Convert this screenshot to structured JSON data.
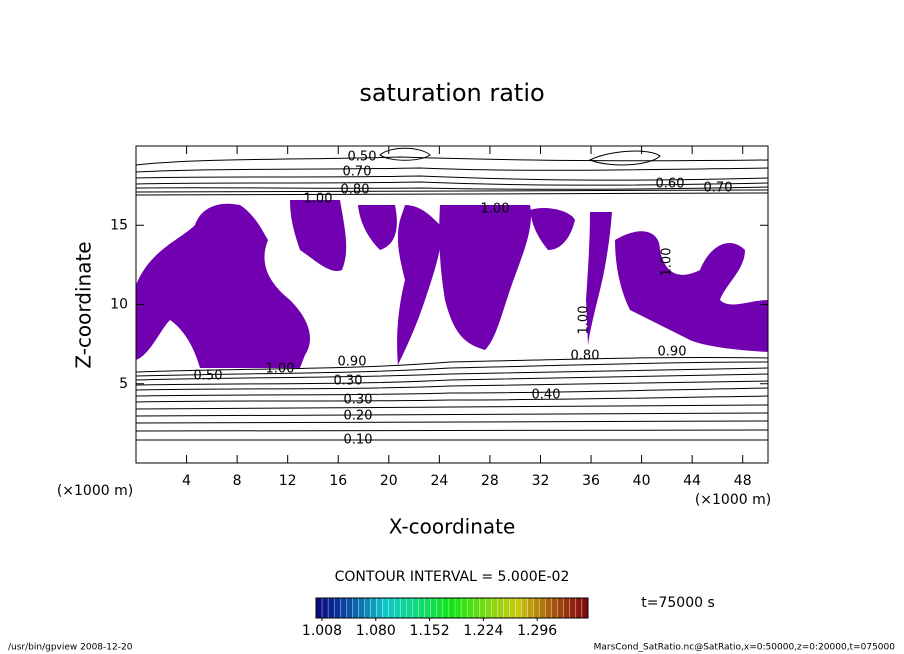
{
  "chart_data": {
    "type": "contour",
    "title": "saturation ratio",
    "xlabel": "X-coordinate",
    "ylabel": "Z-coordinate",
    "xunit": "(×1000 m)",
    "yunit": "(×1000 m)",
    "xlim": [
      0,
      50
    ],
    "ylim": [
      0,
      20
    ],
    "xticks": [
      4,
      8,
      12,
      16,
      20,
      24,
      28,
      32,
      36,
      40,
      44,
      48
    ],
    "yticks": [
      5,
      10,
      15
    ],
    "fill_color": "#7000b0",
    "contour_interval": "CONTOUR INTERVAL = 5.000E-02",
    "contour_labels": [
      "0.50",
      "0.70",
      "0.80",
      "1.00",
      "0.60",
      "0.70",
      "1.00",
      "0.50",
      "1.00",
      "0.90",
      "0.30",
      "0.80",
      "0.90",
      "0.40",
      "0.30",
      "0.20",
      "0.10",
      "1.00",
      "1.00"
    ],
    "colorbar": {
      "lim": [
        1.0,
        1.364
      ],
      "ticks": [
        1.008,
        {
          "value": 1.08,
          "label": "1.080"
        },
        1.152,
        1.224,
        1.296
      ]
    },
    "time_label": "t=75000 s",
    "footer_left": "/usr/bin/gpview  2008-12-20",
    "footer_right": "MarsCond_SatRatio.nc@SatRatio,x=0:50000,z=0:20000,t=075000"
  }
}
